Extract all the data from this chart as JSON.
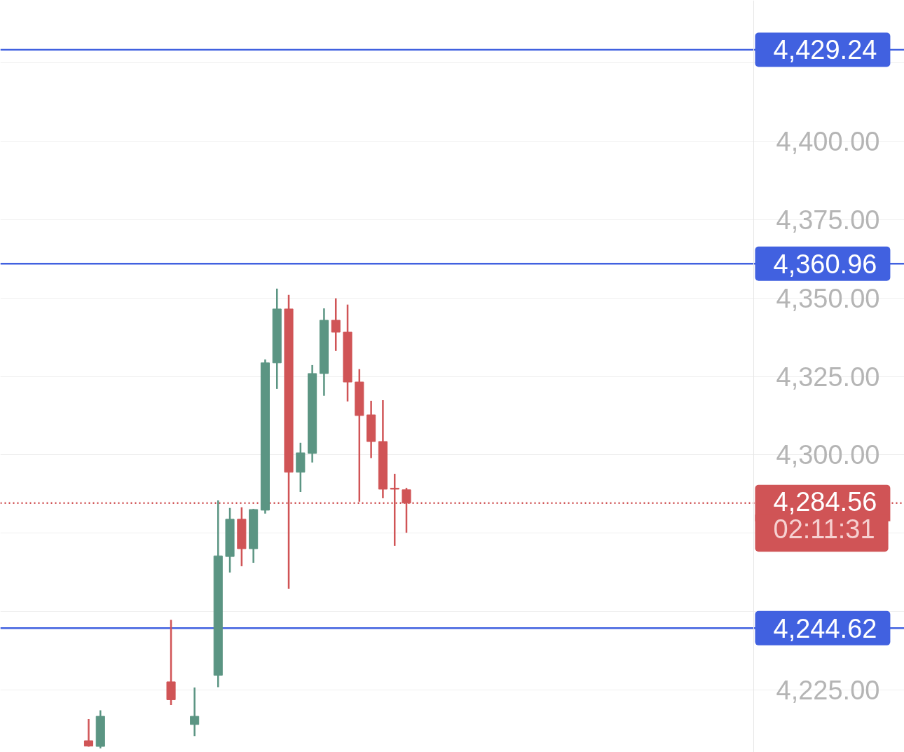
{
  "chart_data": {
    "type": "candlestick",
    "categories": [
      null,
      null,
      null,
      null,
      null,
      null,
      null,
      null,
      null,
      null,
      null,
      null,
      null,
      null,
      null,
      null,
      null,
      null,
      null,
      null,
      null,
      null,
      null,
      null,
      null,
      null,
      null,
      null,
      null,
      null,
      null,
      null,
      null,
      null,
      null,
      null,
      null,
      null,
      null,
      null,
      null,
      null,
      null,
      null,
      null,
      null,
      null,
      null,
      null,
      null,
      null,
      null,
      null,
      null,
      null,
      null,
      null,
      null,
      null,
      null,
      null,
      null,
      null,
      null
    ],
    "ohlc": [
      null,
      null,
      null,
      null,
      null,
      null,
      null,
      [
        4208.7,
        4215.6,
        4206.8,
        4207.0
      ],
      [
        4206.9,
        4218.4,
        4206.3,
        4216.5
      ],
      null,
      null,
      null,
      null,
      null,
      [
        4227.5,
        4247.3,
        4220.1,
        4221.8
      ],
      null,
      [
        4213.9,
        4225.7,
        4210.2,
        4216.5
      ],
      null,
      [
        4229.6,
        4285.4,
        4225.8,
        4267.7
      ],
      [
        4267.5,
        4283.0,
        4262.4,
        4279.4
      ],
      [
        4279.4,
        4283.2,
        4264.4,
        4270.0
      ],
      [
        4270.0,
        4282.7,
        4265.5,
        4282.5
      ],
      [
        4282.3,
        4330.4,
        4281.2,
        4329.3
      ],
      [
        4329.3,
        4353.0,
        4321.0,
        4346.5
      ],
      [
        4346.5,
        4351.0,
        4257.2,
        4294.4
      ],
      [
        4294.4,
        4303.8,
        4288.1,
        4300.6
      ],
      [
        4300.4,
        4328.6,
        4297.5,
        4325.9
      ],
      [
        4325.9,
        4346.7,
        4318.8,
        4342.9
      ],
      [
        4342.9,
        4349.9,
        4333.1,
        4339.1
      ],
      [
        4339.1,
        4347.9,
        4317.0,
        4323.2
      ],
      [
        4323.2,
        4327.3,
        4285.0,
        4312.5
      ],
      [
        4312.7,
        4317.2,
        4298.9,
        4304.2
      ],
      [
        4304.2,
        4317.4,
        4286.1,
        4289.0
      ],
      [
        4289.3,
        4293.9,
        4270.9,
        4289.0
      ],
      [
        4288.8,
        4289.4,
        4275.1,
        4284.56
      ],
      null,
      null,
      null,
      null,
      null,
      null,
      null,
      null,
      null,
      null,
      null,
      null,
      null,
      null,
      null,
      null,
      null,
      null,
      null,
      null,
      null,
      null,
      null,
      null,
      null,
      null,
      null,
      null,
      null
    ],
    "colors": [
      null,
      null,
      null,
      null,
      null,
      null,
      null,
      "#d05456",
      "#5b9583",
      null,
      null,
      null,
      null,
      null,
      "#d05456",
      null,
      "#5b9583",
      null,
      "#5b9583",
      "#5b9583",
      "#d05456",
      "#5b9583",
      "#5b9583",
      "#5b9583",
      "#d05456",
      "#5b9583",
      "#5b9583",
      "#5b9583",
      "#d05456",
      "#d05456",
      "#d05456",
      "#d05456",
      "#d05456",
      "#d05456",
      "#d05456",
      null,
      null,
      null,
      null,
      null,
      null,
      null,
      null,
      null,
      null,
      null,
      null,
      null,
      null,
      null,
      null,
      null,
      null,
      null,
      null,
      null,
      null,
      null,
      null,
      null,
      null,
      null,
      null,
      null
    ],
    "ylim": [
      4205,
      4445
    ],
    "yticks": [
      {
        "value": 4225,
        "label": "4,225.00"
      },
      {
        "value": 4250,
        "label": null
      },
      {
        "value": 4275,
        "label": null
      },
      {
        "value": 4300,
        "label": "4,300.00"
      },
      {
        "value": 4325,
        "label": "4,325.00"
      },
      {
        "value": 4350,
        "label": "4,350.00"
      },
      {
        "value": 4375,
        "label": "4,375.00"
      },
      {
        "value": 4400,
        "label": "4,400.00"
      },
      {
        "value": 4425,
        "label": null
      }
    ],
    "ref_lines": [
      {
        "axis": "y",
        "value": 4429.24,
        "label": "4,429.24",
        "color": "#4161e0",
        "line_style": "solid"
      },
      {
        "axis": "y",
        "value": 4360.96,
        "label": "4,360.96",
        "color": "#4161e0",
        "line_style": "solid"
      },
      {
        "axis": "y",
        "value": 4284.56,
        "label": "4,284.56",
        "color": "#d05456",
        "line_style": "dotted"
      },
      {
        "axis": "y",
        "value": 4244.62,
        "label": "4,244.62",
        "color": "#4161e0",
        "line_style": "solid"
      }
    ],
    "annotations": [
      "02:11:31"
    ],
    "grid": "y",
    "tick_labels": "y"
  }
}
